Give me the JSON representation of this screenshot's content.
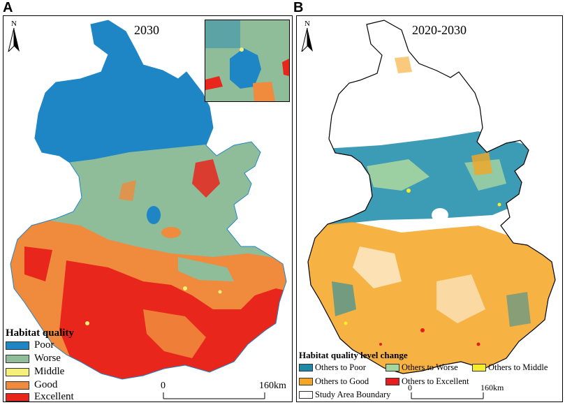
{
  "panels": [
    {
      "letter": "A",
      "year": "2030",
      "north": "N",
      "legend_title": "Habitat quality",
      "legend": [
        {
          "label": "Poor",
          "color": "#1f86c6"
        },
        {
          "label": "Worse",
          "color": "#8fbd9a"
        },
        {
          "label": "Middle",
          "color": "#f4f07a"
        },
        {
          "label": "Good",
          "color": "#f08a3c"
        },
        {
          "label": "Excellent",
          "color": "#e8261c"
        }
      ],
      "scale": {
        "start": "0",
        "end": "160km"
      }
    },
    {
      "letter": "B",
      "year": "2020-2030",
      "north": "N",
      "legend_title": "Habitat quality level change",
      "legend": [
        {
          "label": "Others to Poor",
          "color": "#1a8aa8"
        },
        {
          "label": "Others to Worse",
          "color": "#a6d6a0"
        },
        {
          "label": "Others to Middle",
          "color": "#f6ee2a"
        },
        {
          "label": "Others to Good",
          "color": "#f5a623"
        },
        {
          "label": "Others to Excellent",
          "color": "#e81c1c"
        },
        {
          "label": "Study Area Boundary",
          "color": "#ffffff"
        }
      ],
      "scale": {
        "start": "0",
        "end": "160km"
      }
    }
  ]
}
